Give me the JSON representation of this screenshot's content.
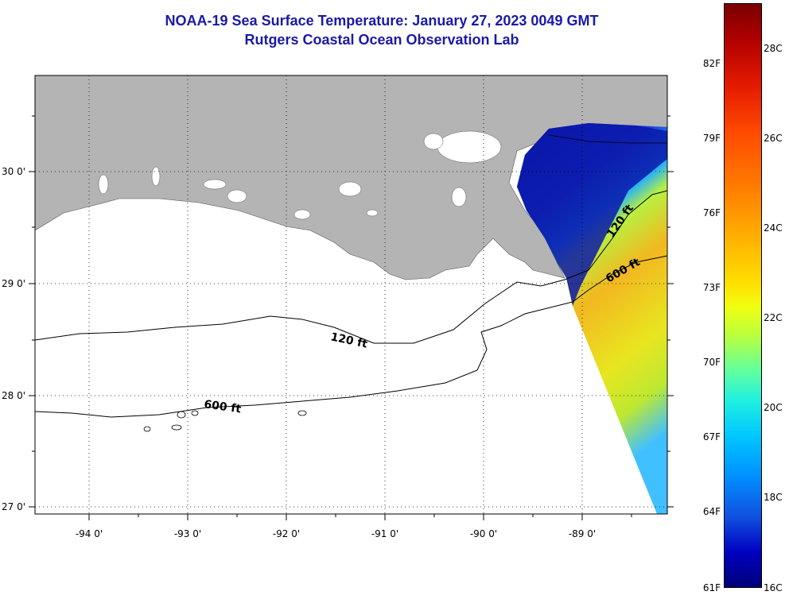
{
  "title": {
    "line1": "NOAA-19 Sea Surface Temperature:  January 27, 2023 0049 GMT",
    "line2": "Rutgers Coastal Ocean Observation Lab"
  },
  "map": {
    "latitude_labels": [
      "30 0'",
      "29 0'",
      "28 0'",
      "27 0'"
    ],
    "longitude_labels": [
      "-94 0'",
      "-93 0'",
      "-92 0'",
      "-91 0'",
      "-90 0'",
      "-89 0'"
    ],
    "contour_labels": {
      "shelf_120_west": "120 ft",
      "shelf_600_west": "600 ft",
      "shelf_120_east": "120 ft",
      "shelf_600_east": "600 ft"
    },
    "colors": {
      "land": "#b4b4b4",
      "ocean": "#ffffff",
      "cold_water": "#0a18a8",
      "warm_water": "#e6e020"
    }
  },
  "colorbar": {
    "fahrenheit_labels": [
      "82F",
      "79F",
      "76F",
      "73F",
      "70F",
      "67F",
      "64F",
      "61F"
    ],
    "celsius_labels": [
      "28C",
      "26C",
      "24C",
      "22C",
      "20C",
      "18C",
      "16C"
    ]
  }
}
